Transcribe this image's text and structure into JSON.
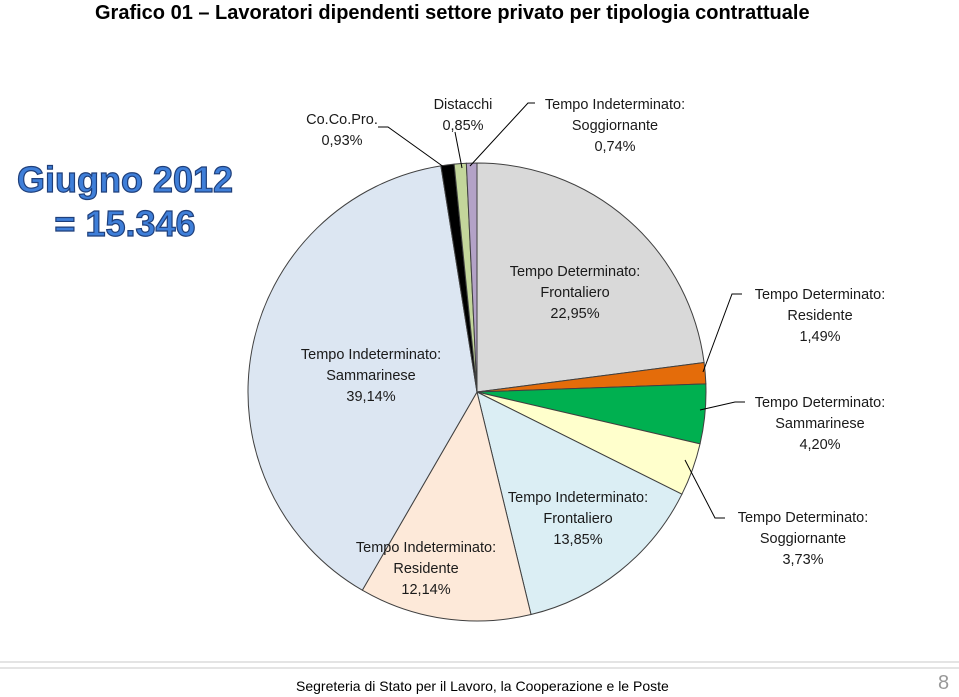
{
  "title": "Grafico 01 – Lavoratori dipendenti settore privato per tipologia contrattuale",
  "badge": {
    "line1": "Giugno 2012",
    "line2": "= 15.346"
  },
  "footer": "Segreteria di Stato per il Lavoro, la Cooperazione e le Poste",
  "page_number": "8",
  "chart_data": {
    "type": "pie",
    "categories": [
      "Tempo Determinato: Frontaliero",
      "Tempo Determinato: Residente",
      "Tempo Determinato: Sammarinese",
      "Tempo Determinato: Soggiornante",
      "Tempo Indeterminato: Frontaliero",
      "Tempo Indeterminato: Residente",
      "Tempo Indeterminato: Sammarinese",
      "Co.Co.Pro.",
      "Distacchi",
      "Tempo Indeterminato: Soggiornante"
    ],
    "values": [
      22.95,
      1.49,
      4.2,
      3.73,
      13.85,
      12.14,
      39.14,
      0.93,
      0.85,
      0.74
    ],
    "value_labels": [
      "22,95%",
      "1,49%",
      "4,20%",
      "3,73%",
      "13,85%",
      "12,14%",
      "39,14%",
      "0,93%",
      "0,85%",
      "0,74%"
    ],
    "colors": [
      "#d9d9d9",
      "#e46c0a",
      "#00b050",
      "#ffffcc",
      "#dbeef4",
      "#fde9d9",
      "#dce6f2",
      "#000000",
      "#c3d69b",
      "#b3a2c7"
    ]
  }
}
